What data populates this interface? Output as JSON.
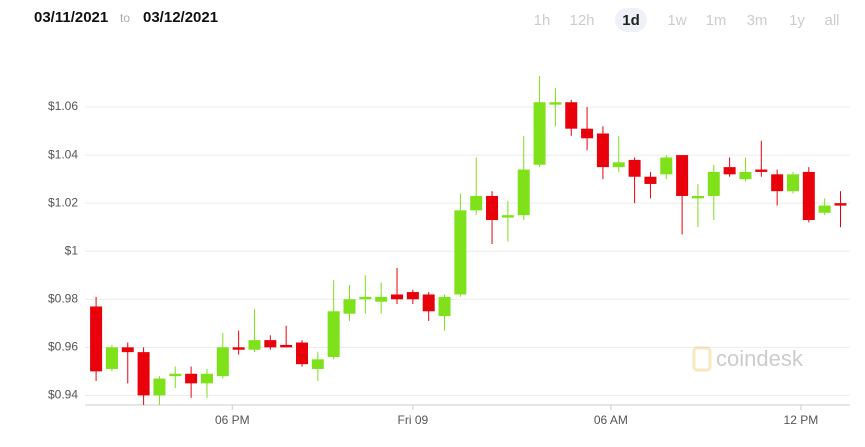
{
  "header": {
    "from_date": "03/11/2021",
    "separator": "to",
    "to_date": "03/12/2021",
    "ranges": [
      "1h",
      "12h",
      "1d",
      "1w",
      "1m",
      "3m",
      "1y",
      "all"
    ],
    "active_range": "1d"
  },
  "chart_data": {
    "type": "candlestick",
    "watermark": "coindesk",
    "up_color": "#7ee11a",
    "down_color": "#e8000b",
    "grid": true,
    "open": [
      0.977,
      0.951,
      0.96,
      0.958,
      0.94,
      0.948,
      0.949,
      0.945,
      0.948,
      0.96,
      0.959,
      0.963,
      0.961,
      0.962,
      0.951,
      0.956,
      0.974,
      0.98,
      0.979,
      0.982,
      0.983,
      0.982,
      0.973,
      0.982,
      1.017,
      1.023,
      1.014,
      1.015,
      1.036,
      1.061,
      1.062,
      1.051,
      1.049,
      1.035,
      1.038,
      1.031,
      1.032,
      1.04,
      1.022,
      1.023,
      1.035,
      1.03,
      1.034,
      1.032,
      1.025,
      1.033,
      1.016,
      1.02
    ],
    "high": [
      0.981,
      0.961,
      0.962,
      0.96,
      0.948,
      0.952,
      0.952,
      0.951,
      0.966,
      0.967,
      0.976,
      0.965,
      0.969,
      0.963,
      0.958,
      0.988,
      0.986,
      0.99,
      0.987,
      0.993,
      0.984,
      0.983,
      0.982,
      1.024,
      1.039,
      1.025,
      1.021,
      1.048,
      1.073,
      1.068,
      1.063,
      1.06,
      1.052,
      1.048,
      1.039,
      1.033,
      1.04,
      1.04,
      1.028,
      1.036,
      1.039,
      1.039,
      1.046,
      1.034,
      1.033,
      1.035,
      1.022,
      1.025
    ],
    "low": [
      0.946,
      0.95,
      0.945,
      0.936,
      0.936,
      0.943,
      0.939,
      0.939,
      0.947,
      0.957,
      0.958,
      0.959,
      0.96,
      0.952,
      0.946,
      0.955,
      0.971,
      0.974,
      0.974,
      0.978,
      0.978,
      0.971,
      0.967,
      0.981,
      1.015,
      1.003,
      1.004,
      1.013,
      1.035,
      1.052,
      1.048,
      1.042,
      1.03,
      1.033,
      1.02,
      1.022,
      1.03,
      1.007,
      1.01,
      1.013,
      1.031,
      1.029,
      1.031,
      1.019,
      1.024,
      1.012,
      1.015,
      1.01
    ],
    "close": [
      0.95,
      0.96,
      0.958,
      0.94,
      0.947,
      0.949,
      0.945,
      0.949,
      0.96,
      0.959,
      0.963,
      0.96,
      0.96,
      0.953,
      0.955,
      0.975,
      0.98,
      0.981,
      0.981,
      0.98,
      0.98,
      0.975,
      0.981,
      1.017,
      1.023,
      1.013,
      1.015,
      1.034,
      1.062,
      1.062,
      1.051,
      1.047,
      1.035,
      1.037,
      1.031,
      1.028,
      1.039,
      1.023,
      1.023,
      1.033,
      1.032,
      1.033,
      1.033,
      1.025,
      1.032,
      1.013,
      1.019,
      1.019
    ],
    "ylim": [
      0.936,
      1.08
    ],
    "yticks": [
      {
        "value": 0.94,
        "label": "$0.94"
      },
      {
        "value": 0.96,
        "label": "$0.96"
      },
      {
        "value": 0.98,
        "label": "$0.98"
      },
      {
        "value": 1,
        "label": "$1"
      },
      {
        "value": 1.02,
        "label": "$1.02"
      },
      {
        "value": 1.04,
        "label": "$1.04"
      },
      {
        "value": 1.06,
        "label": "$1.06"
      }
    ],
    "xlim": [
      -0.7,
      47.6
    ],
    "xticks": [
      {
        "value": 8.6,
        "label": "06 PM"
      },
      {
        "value": 20,
        "label": "Fri 09"
      },
      {
        "value": 32.5,
        "label": "06 AM"
      },
      {
        "value": 44.5,
        "label": "12 PM"
      }
    ]
  }
}
